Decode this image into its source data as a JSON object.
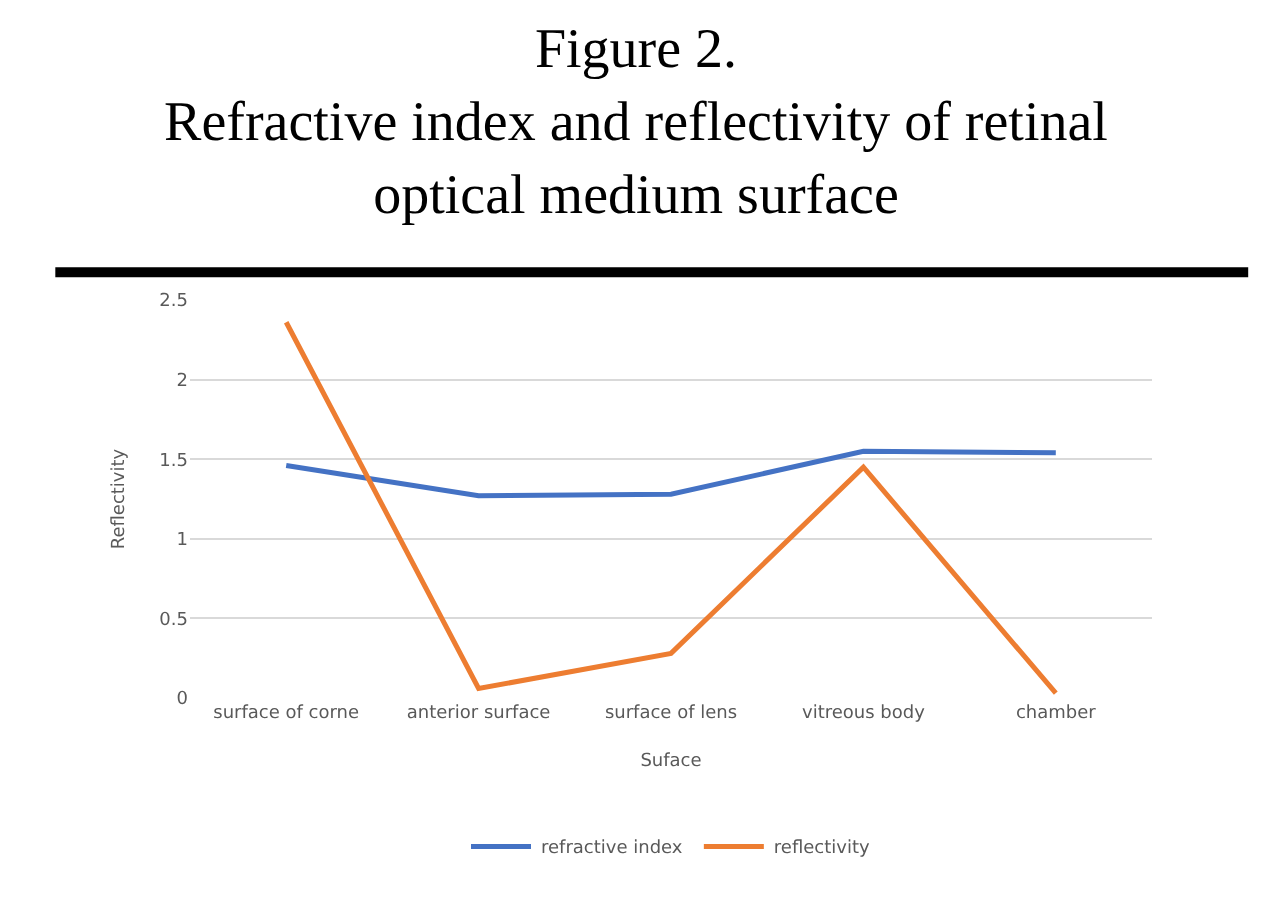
{
  "chart_data": {
    "type": "line",
    "title": "Figure 2.\nRefractive index and reflectivity of retinal\noptical medium surface",
    "xlabel": "Suface",
    "ylabel": "Reflectivity",
    "categories": [
      "surface of corne",
      "anterior surface",
      "surface of lens",
      "vitreous body",
      "chamber"
    ],
    "series": [
      {
        "name": "refractive index",
        "color": "#4472c4",
        "values": [
          1.46,
          1.27,
          1.28,
          1.55,
          1.54
        ]
      },
      {
        "name": "reflectivity",
        "color": "#ed7d31",
        "values": [
          2.36,
          0.06,
          0.28,
          1.45,
          0.03
        ]
      }
    ],
    "ylim": [
      0,
      2.5
    ],
    "yticks": [
      0,
      0.5,
      1,
      1.5,
      2,
      2.5
    ],
    "grid": "y",
    "legend": "bottom",
    "marker": "none",
    "line_style": "solid"
  }
}
